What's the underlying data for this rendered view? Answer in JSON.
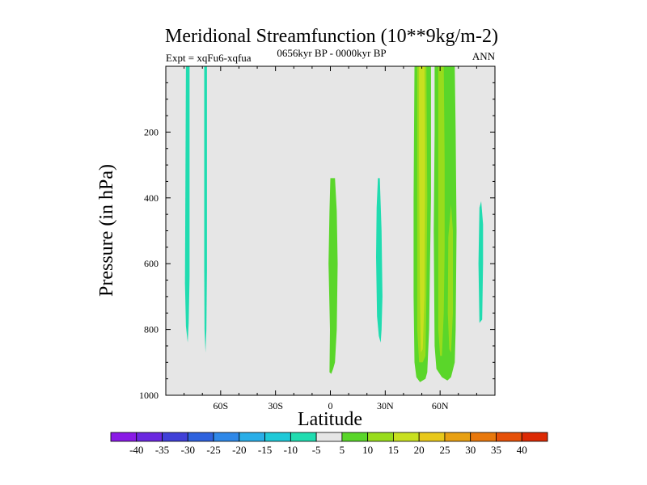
{
  "chart_data": {
    "type": "heatmap",
    "title": "Meridional Streamfunction (10**9kg/m-2)",
    "subtitle_left": "Expt = xqFu6-xqfua",
    "subtitle_center": "0656kyr BP - 0000kyr BP",
    "subtitle_right": "ANN",
    "xlabel": "Latitude",
    "ylabel": "Pressure (in hPa)",
    "xlim": [
      -90,
      90
    ],
    "ylim": [
      1000,
      0
    ],
    "x_ticks": [
      {
        "value": -60,
        "label": "60S"
      },
      {
        "value": -30,
        "label": "30S"
      },
      {
        "value": 0,
        "label": "0"
      },
      {
        "value": 30,
        "label": "30N"
      },
      {
        "value": 60,
        "label": "60N"
      }
    ],
    "y_ticks": [
      {
        "value": 200,
        "label": "200"
      },
      {
        "value": 400,
        "label": "400"
      },
      {
        "value": 600,
        "label": "600"
      },
      {
        "value": 800,
        "label": "800"
      },
      {
        "value": 1000,
        "label": "1000"
      }
    ],
    "background_color": "#e6e6e6",
    "colorbar": {
      "levels": [
        -40,
        -35,
        -30,
        -25,
        -20,
        -15,
        -10,
        -5,
        5,
        10,
        15,
        20,
        25,
        30,
        35,
        40
      ],
      "labels": [
        "-40",
        "-35",
        "-30",
        "-25",
        "-20",
        "-15",
        "-10",
        "-5",
        "5",
        "10",
        "15",
        "20",
        "25",
        "30",
        "35",
        "40"
      ],
      "colors": [
        "#8a1ae6",
        "#6b28e0",
        "#4040d8",
        "#2e62de",
        "#2f88e8",
        "#2aaee8",
        "#1fc9d8",
        "#20dcb0",
        "#e6e6e6",
        "#5ad62a",
        "#98dc1c",
        "#c8e020",
        "#e8c81a",
        "#e8a012",
        "#e8780c",
        "#e65008",
        "#dc2a04"
      ]
    },
    "filled_regions": [
      {
        "name": "region-80s-neg",
        "level": "-10 to -5",
        "color": "#20dcb0",
        "outline": [
          [
            -79,
            0
          ],
          [
            -77,
            0
          ],
          [
            -77,
            640
          ],
          [
            -77.5,
            780
          ],
          [
            -78,
            840
          ],
          [
            -79,
            790
          ],
          [
            -79.5,
            660
          ],
          [
            -79,
            0
          ]
        ]
      },
      {
        "name": "region-70s-neg",
        "level": "-10 to -5",
        "color": "#20dcb0",
        "outline": [
          [
            -69,
            0
          ],
          [
            -67.5,
            0
          ],
          [
            -67.5,
            620
          ],
          [
            -67.8,
            800
          ],
          [
            -68.3,
            870
          ],
          [
            -68.8,
            800
          ],
          [
            -69,
            620
          ],
          [
            -69,
            0
          ]
        ]
      },
      {
        "name": "region-eq-pos",
        "level": "5 to 10",
        "color": "#5ad62a",
        "outline": [
          [
            0,
            340
          ],
          [
            2.5,
            340
          ],
          [
            3.5,
            440
          ],
          [
            4,
            600
          ],
          [
            3.5,
            800
          ],
          [
            2.5,
            900
          ],
          [
            1.5,
            920
          ],
          [
            0.5,
            935
          ],
          [
            -0.5,
            930
          ],
          [
            -0.2,
            800
          ],
          [
            -1,
            600
          ],
          [
            -0.5,
            440
          ],
          [
            0,
            340
          ]
        ]
      },
      {
        "name": "region-25n-neg",
        "level": "-10 to -5",
        "color": "#20dcb0",
        "outline": [
          [
            26,
            340
          ],
          [
            27,
            340
          ],
          [
            28,
            500
          ],
          [
            28.5,
            700
          ],
          [
            28,
            800
          ],
          [
            27.5,
            840
          ],
          [
            26.5,
            820
          ],
          [
            25.5,
            760
          ],
          [
            25,
            580
          ],
          [
            25.3,
            430
          ],
          [
            26,
            340
          ]
        ]
      },
      {
        "name": "region-45n-pos",
        "level": "5 to 10",
        "color": "#5ad62a",
        "outline": [
          [
            46,
            0
          ],
          [
            55,
            0
          ],
          [
            55,
            400
          ],
          [
            54.5,
            600
          ],
          [
            54,
            800
          ],
          [
            53,
            930
          ],
          [
            52,
            950
          ],
          [
            49,
            960
          ],
          [
            47,
            945
          ],
          [
            46,
            900
          ],
          [
            45.5,
            700
          ],
          [
            45.5,
            400
          ],
          [
            46,
            0
          ]
        ]
      },
      {
        "name": "region-48n-core",
        "level": "10 to 15",
        "color": "#98dc1c",
        "outline": [
          [
            47.5,
            0
          ],
          [
            52.5,
            0
          ],
          [
            53,
            400
          ],
          [
            52.5,
            700
          ],
          [
            52,
            880
          ],
          [
            50.5,
            900
          ],
          [
            48.5,
            900
          ],
          [
            47.5,
            800
          ],
          [
            47.5,
            400
          ],
          [
            47.5,
            0
          ]
        ]
      },
      {
        "name": "region-50n-max",
        "level": "15 to 20",
        "color": "#c8e020",
        "outline": [
          [
            48.5,
            0
          ],
          [
            51.5,
            0
          ],
          [
            51.8,
            300
          ],
          [
            51.5,
            700
          ],
          [
            50.5,
            860
          ],
          [
            49.5,
            870
          ],
          [
            49,
            700
          ],
          [
            48.5,
            300
          ],
          [
            48.5,
            0
          ]
        ]
      },
      {
        "name": "region-60n-pos",
        "level": "5 to 10",
        "color": "#5ad62a",
        "outline": [
          [
            57,
            0
          ],
          [
            68,
            0
          ],
          [
            68.5,
            200
          ],
          [
            69,
            500
          ],
          [
            68.5,
            800
          ],
          [
            68,
            900
          ],
          [
            66,
            945
          ],
          [
            64,
            955
          ],
          [
            61,
            945
          ],
          [
            58,
            920
          ],
          [
            57,
            850
          ],
          [
            56.5,
            500
          ],
          [
            57,
            200
          ],
          [
            57,
            0
          ]
        ]
      },
      {
        "name": "region-61n-core",
        "level": "10 to 15",
        "color": "#98dc1c",
        "outline": [
          [
            59,
            0
          ],
          [
            62,
            0
          ],
          [
            62.5,
            300
          ],
          [
            62.5,
            550
          ],
          [
            62,
            750
          ],
          [
            61,
            880
          ],
          [
            60,
            880
          ],
          [
            59,
            800
          ],
          [
            59,
            400
          ],
          [
            59,
            0
          ]
        ]
      },
      {
        "name": "region-65n-core",
        "level": "10 to 15",
        "color": "#98dc1c",
        "outline": [
          [
            64.5,
            520
          ],
          [
            66,
            420
          ],
          [
            67,
            500
          ],
          [
            67,
            750
          ],
          [
            66,
            870
          ],
          [
            65,
            860
          ],
          [
            64.2,
            750
          ],
          [
            64.5,
            520
          ]
        ]
      },
      {
        "name": "region-80n-neg",
        "level": "-10 to -5",
        "color": "#20dcb0",
        "outline": [
          [
            81.5,
            430
          ],
          [
            82.5,
            410
          ],
          [
            83.5,
            480
          ],
          [
            83.5,
            600
          ],
          [
            83,
            770
          ],
          [
            81.5,
            780
          ],
          [
            81,
            600
          ],
          [
            81.5,
            430
          ]
        ]
      }
    ]
  }
}
